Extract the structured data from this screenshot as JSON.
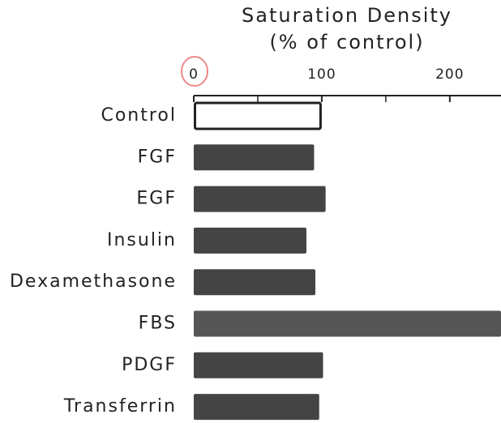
{
  "chart_data": {
    "type": "bar",
    "orientation": "horizontal",
    "title": "Saturation Density",
    "xlabel": "(% of control)",
    "categories": [
      "Control",
      "FGF",
      "EGF",
      "Insulin",
      "Dexamethasone",
      "FBS",
      "PDGF",
      "Transferrin"
    ],
    "values": [
      100,
      94,
      103,
      88,
      95,
      240,
      101,
      98
    ],
    "colors": [
      "#ffffff",
      "#444444",
      "#444444",
      "#444444",
      "#444444",
      "#555555",
      "#444444",
      "#444444"
    ],
    "xlim": [
      0,
      240
    ],
    "xticks": [
      0,
      100,
      200
    ],
    "xminor_ticks": [
      50,
      150
    ],
    "axis_position": "top",
    "grid": false
  }
}
